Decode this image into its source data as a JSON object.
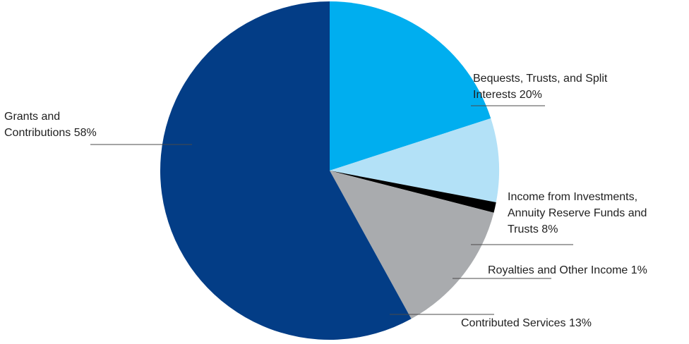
{
  "chart_data": {
    "type": "pie",
    "title": "",
    "start": "12 o'clock, clockwise",
    "slices": [
      {
        "label_lines": [
          "Bequests, Trusts, and Split",
          "Interests 20%"
        ],
        "value": 20,
        "color": "#00aeef"
      },
      {
        "label_lines": [
          "Income from Investments,",
          "Annuity Reserve Funds and",
          "Trusts 8%"
        ],
        "value": 8,
        "color": "#b3e1f7"
      },
      {
        "label_lines": [
          "Royalties and Other Income 1%"
        ],
        "value": 1,
        "color": "#000000"
      },
      {
        "label_lines": [
          "Contributed Services 13%"
        ],
        "value": 13,
        "color": "#a9abae"
      },
      {
        "label_lines": [
          "Grants and",
          "Contributions 58%"
        ],
        "value": 58,
        "color": "#033d86"
      }
    ]
  }
}
